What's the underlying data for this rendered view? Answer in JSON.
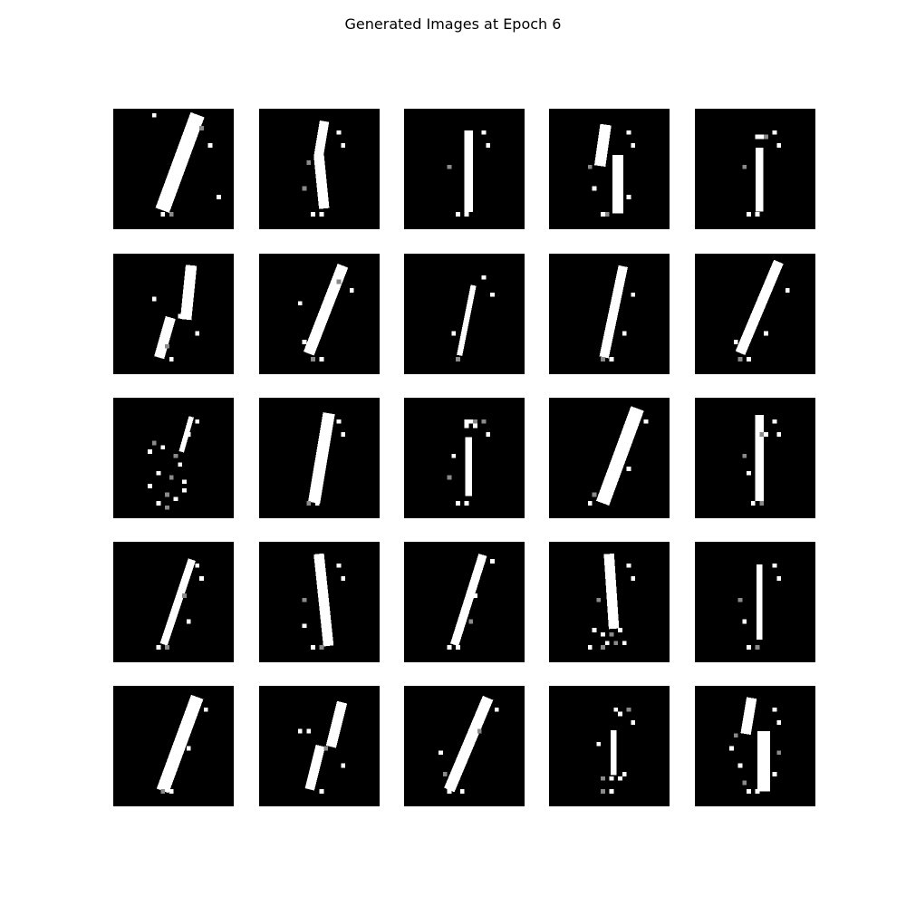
{
  "title": "Generated Images at Epoch 6",
  "grid": {
    "rows": 5,
    "cols": 5,
    "image_resolution": 28
  },
  "colors": {
    "background": "#ffffff",
    "image_background": "#000000",
    "stroke": "#ffffff"
  },
  "images": [
    {
      "name": "digit-1-slanted-thick",
      "strokes": [
        {
          "x1": 19,
          "y1": 3,
          "x2": 12,
          "y2": 22,
          "w": 3.4
        }
      ],
      "noise": [
        [
          9,
          1
        ],
        [
          22,
          8
        ],
        [
          20,
          4
        ],
        [
          24,
          20
        ],
        [
          11,
          24
        ],
        [
          13,
          24
        ]
      ]
    },
    {
      "name": "digit-1-vertical-split",
      "strokes": [
        {
          "x1": 15,
          "y1": 4,
          "x2": 14,
          "y2": 10,
          "w": 2.2
        },
        {
          "x1": 14,
          "y1": 12,
          "x2": 15,
          "y2": 22,
          "w": 2.4
        }
      ],
      "noise": [
        [
          18,
          5
        ],
        [
          19,
          8
        ],
        [
          10,
          18
        ],
        [
          12,
          24
        ],
        [
          14,
          24
        ],
        [
          11,
          12
        ]
      ]
    },
    {
      "name": "digit-1-thin-vertical",
      "strokes": [
        {
          "x1": 15,
          "y1": 6,
          "x2": 15,
          "y2": 23,
          "w": 2.0
        }
      ],
      "noise": [
        [
          18,
          5
        ],
        [
          19,
          8
        ],
        [
          10,
          13
        ],
        [
          12,
          24
        ],
        [
          14,
          24
        ]
      ]
    },
    {
      "name": "digit-1-blotchy",
      "strokes": [
        {
          "x1": 13,
          "y1": 5,
          "x2": 12,
          "y2": 12,
          "w": 2.6
        },
        {
          "x1": 16,
          "y1": 12,
          "x2": 16,
          "y2": 23,
          "w": 2.6
        }
      ],
      "noise": [
        [
          18,
          5
        ],
        [
          19,
          8
        ],
        [
          9,
          13
        ],
        [
          10,
          18
        ],
        [
          12,
          24
        ],
        [
          13,
          24
        ],
        [
          18,
          20
        ]
      ]
    },
    {
      "name": "digit-1-capped",
      "strokes": [
        {
          "x1": 15,
          "y1": 10,
          "x2": 15,
          "y2": 23,
          "w": 1.8
        }
      ],
      "noise": [
        [
          14,
          6
        ],
        [
          15,
          6
        ],
        [
          16,
          6
        ],
        [
          18,
          5
        ],
        [
          19,
          8
        ],
        [
          11,
          13
        ],
        [
          12,
          24
        ],
        [
          14,
          24
        ]
      ]
    },
    {
      "name": "digit-1-broken-curl",
      "strokes": [
        {
          "x1": 18,
          "y1": 4,
          "x2": 17,
          "y2": 14,
          "w": 2.6
        },
        {
          "x1": 13,
          "y1": 16,
          "x2": 11,
          "y2": 23,
          "w": 2.4
        }
      ],
      "noise": [
        [
          15,
          14
        ],
        [
          19,
          18
        ],
        [
          12,
          21
        ],
        [
          9,
          10
        ],
        [
          13,
          24
        ]
      ]
    },
    {
      "name": "digit-1-slanted-speckled",
      "strokes": [
        {
          "x1": 19,
          "y1": 4,
          "x2": 12,
          "y2": 22,
          "w": 2.6
        }
      ],
      "noise": [
        [
          9,
          11
        ],
        [
          10,
          20
        ],
        [
          12,
          24
        ],
        [
          14,
          24
        ],
        [
          21,
          8
        ],
        [
          18,
          6
        ]
      ]
    },
    {
      "name": "digit-1-dotted-thin",
      "strokes": [
        {
          "x1": 16,
          "y1": 8,
          "x2": 13,
          "y2": 23,
          "w": 1.3
        }
      ],
      "noise": [
        [
          18,
          5
        ],
        [
          20,
          9
        ],
        [
          12,
          24
        ],
        [
          11,
          18
        ],
        [
          14,
          15
        ]
      ]
    },
    {
      "name": "digit-1-clean-slant",
      "strokes": [
        {
          "x1": 17,
          "y1": 4,
          "x2": 13,
          "y2": 23,
          "w": 2.2
        }
      ],
      "noise": [
        [
          19,
          9
        ],
        [
          17,
          18
        ],
        [
          12,
          24
        ],
        [
          14,
          24
        ]
      ]
    },
    {
      "name": "digit-1-long-slant",
      "strokes": [
        {
          "x1": 19,
          "y1": 3,
          "x2": 11,
          "y2": 22,
          "w": 2.4
        }
      ],
      "noise": [
        [
          21,
          8
        ],
        [
          16,
          18
        ],
        [
          10,
          24
        ],
        [
          12,
          24
        ],
        [
          9,
          20
        ]
      ]
    },
    {
      "name": "digit-1-scattered",
      "strokes": [
        {
          "x1": 18,
          "y1": 5,
          "x2": 16,
          "y2": 12,
          "w": 1.2
        }
      ],
      "noise": [
        [
          19,
          5
        ],
        [
          17,
          8
        ],
        [
          9,
          10
        ],
        [
          11,
          11
        ],
        [
          8,
          12
        ],
        [
          14,
          13
        ],
        [
          15,
          15
        ],
        [
          10,
          17
        ],
        [
          13,
          18
        ],
        [
          16,
          19
        ],
        [
          8,
          20
        ],
        [
          12,
          22
        ],
        [
          14,
          23
        ],
        [
          10,
          24
        ],
        [
          12,
          25
        ],
        [
          16,
          21
        ]
      ]
    },
    {
      "name": "digit-1-bold",
      "strokes": [
        {
          "x1": 16,
          "y1": 5,
          "x2": 13,
          "y2": 23,
          "w": 2.8
        }
      ],
      "noise": [
        [
          18,
          5
        ],
        [
          19,
          8
        ],
        [
          11,
          24
        ],
        [
          13,
          24
        ]
      ]
    },
    {
      "name": "digit-1-hooked",
      "strokes": [
        {
          "x1": 15,
          "y1": 10,
          "x2": 15,
          "y2": 22,
          "w": 1.6
        }
      ],
      "noise": [
        [
          14,
          5
        ],
        [
          15,
          5
        ],
        [
          16,
          5
        ],
        [
          14,
          6
        ],
        [
          16,
          6
        ],
        [
          18,
          5
        ],
        [
          19,
          8
        ],
        [
          11,
          13
        ],
        [
          10,
          18
        ],
        [
          12,
          24
        ],
        [
          14,
          24
        ]
      ]
    },
    {
      "name": "digit-1-wide-slant",
      "strokes": [
        {
          "x1": 20,
          "y1": 4,
          "x2": 13,
          "y2": 23,
          "w": 3.2
        }
      ],
      "noise": [
        [
          22,
          5
        ],
        [
          9,
          24
        ],
        [
          10,
          22
        ],
        [
          18,
          16
        ]
      ]
    },
    {
      "name": "digit-1-split-vertical",
      "strokes": [
        {
          "x1": 15,
          "y1": 5,
          "x2": 15,
          "y2": 23,
          "w": 2.0
        }
      ],
      "noise": [
        [
          14,
          8
        ],
        [
          16,
          8
        ],
        [
          15,
          8
        ],
        [
          18,
          5
        ],
        [
          19,
          8
        ],
        [
          11,
          13
        ],
        [
          12,
          17
        ],
        [
          13,
          24
        ],
        [
          15,
          24
        ]
      ]
    },
    {
      "name": "digit-1-thin-slant",
      "strokes": [
        {
          "x1": 18,
          "y1": 5,
          "x2": 12,
          "y2": 23,
          "w": 1.8
        }
      ],
      "noise": [
        [
          19,
          5
        ],
        [
          20,
          8
        ],
        [
          16,
          12
        ],
        [
          17,
          18
        ],
        [
          10,
          24
        ],
        [
          12,
          24
        ]
      ]
    },
    {
      "name": "digit-1-curved",
      "strokes": [
        {
          "x1": 14,
          "y1": 4,
          "x2": 16,
          "y2": 23,
          "w": 2.4
        }
      ],
      "noise": [
        [
          18,
          5
        ],
        [
          19,
          8
        ],
        [
          10,
          13
        ],
        [
          10,
          19
        ],
        [
          12,
          24
        ],
        [
          14,
          24
        ]
      ]
    },
    {
      "name": "digit-1-faint-slant",
      "strokes": [
        {
          "x1": 18,
          "y1": 4,
          "x2": 12,
          "y2": 23,
          "w": 2.0
        }
      ],
      "noise": [
        [
          20,
          4
        ],
        [
          16,
          12
        ],
        [
          15,
          18
        ],
        [
          10,
          24
        ],
        [
          12,
          24
        ]
      ]
    },
    {
      "name": "digit-1-noisy-base",
      "strokes": [
        {
          "x1": 14,
          "y1": 4,
          "x2": 15,
          "y2": 19,
          "w": 2.4
        }
      ],
      "noise": [
        [
          18,
          5
        ],
        [
          19,
          8
        ],
        [
          11,
          13
        ],
        [
          10,
          20
        ],
        [
          12,
          21
        ],
        [
          14,
          21
        ],
        [
          16,
          20
        ],
        [
          13,
          23
        ],
        [
          15,
          23
        ],
        [
          17,
          23
        ],
        [
          9,
          24
        ],
        [
          12,
          24
        ]
      ]
    },
    {
      "name": "digit-1-narrow",
      "strokes": [
        {
          "x1": 15,
          "y1": 6,
          "x2": 15,
          "y2": 22,
          "w": 1.4
        }
      ],
      "noise": [
        [
          18,
          5
        ],
        [
          19,
          8
        ],
        [
          10,
          13
        ],
        [
          11,
          18
        ],
        [
          12,
          24
        ],
        [
          14,
          24
        ]
      ]
    },
    {
      "name": "digit-1-clean-long",
      "strokes": [
        {
          "x1": 19,
          "y1": 4,
          "x2": 12,
          "y2": 23,
          "w": 3.0
        }
      ],
      "noise": [
        [
          21,
          5
        ],
        [
          17,
          14
        ],
        [
          11,
          24
        ],
        [
          13,
          24
        ]
      ]
    },
    {
      "name": "digit-1-broken-slant",
      "strokes": [
        {
          "x1": 19,
          "y1": 5,
          "x2": 17,
          "y2": 13,
          "w": 2.4
        },
        {
          "x1": 14,
          "y1": 15,
          "x2": 12,
          "y2": 23,
          "w": 2.2
        }
      ],
      "noise": [
        [
          9,
          10
        ],
        [
          11,
          10
        ],
        [
          15,
          14
        ],
        [
          19,
          18
        ],
        [
          14,
          24
        ]
      ]
    },
    {
      "name": "digit-1-slant-noisy",
      "strokes": [
        {
          "x1": 19,
          "y1": 4,
          "x2": 11,
          "y2": 23,
          "w": 2.6
        }
      ],
      "noise": [
        [
          21,
          5
        ],
        [
          8,
          15
        ],
        [
          9,
          20
        ],
        [
          10,
          24
        ],
        [
          13,
          24
        ],
        [
          17,
          10
        ]
      ]
    },
    {
      "name": "digit-1-sparse",
      "strokes": [
        {
          "x1": 15,
          "y1": 11,
          "x2": 15,
          "y2": 20,
          "w": 1.4
        }
      ],
      "noise": [
        [
          15,
          5
        ],
        [
          16,
          6
        ],
        [
          18,
          5
        ],
        [
          19,
          8
        ],
        [
          11,
          13
        ],
        [
          12,
          21
        ],
        [
          14,
          21
        ],
        [
          16,
          21
        ],
        [
          12,
          24
        ],
        [
          14,
          24
        ],
        [
          17,
          20
        ]
      ]
    },
    {
      "name": "digit-1-cluster",
      "strokes": [
        {
          "x1": 13,
          "y1": 4,
          "x2": 12,
          "y2": 10,
          "w": 2.4
        },
        {
          "x1": 16,
          "y1": 12,
          "x2": 16,
          "y2": 23,
          "w": 3.0
        }
      ],
      "noise": [
        [
          18,
          5
        ],
        [
          19,
          8
        ],
        [
          9,
          11
        ],
        [
          8,
          14
        ],
        [
          10,
          18
        ],
        [
          11,
          22
        ],
        [
          12,
          24
        ],
        [
          14,
          24
        ],
        [
          19,
          15
        ],
        [
          18,
          20
        ]
      ]
    }
  ]
}
